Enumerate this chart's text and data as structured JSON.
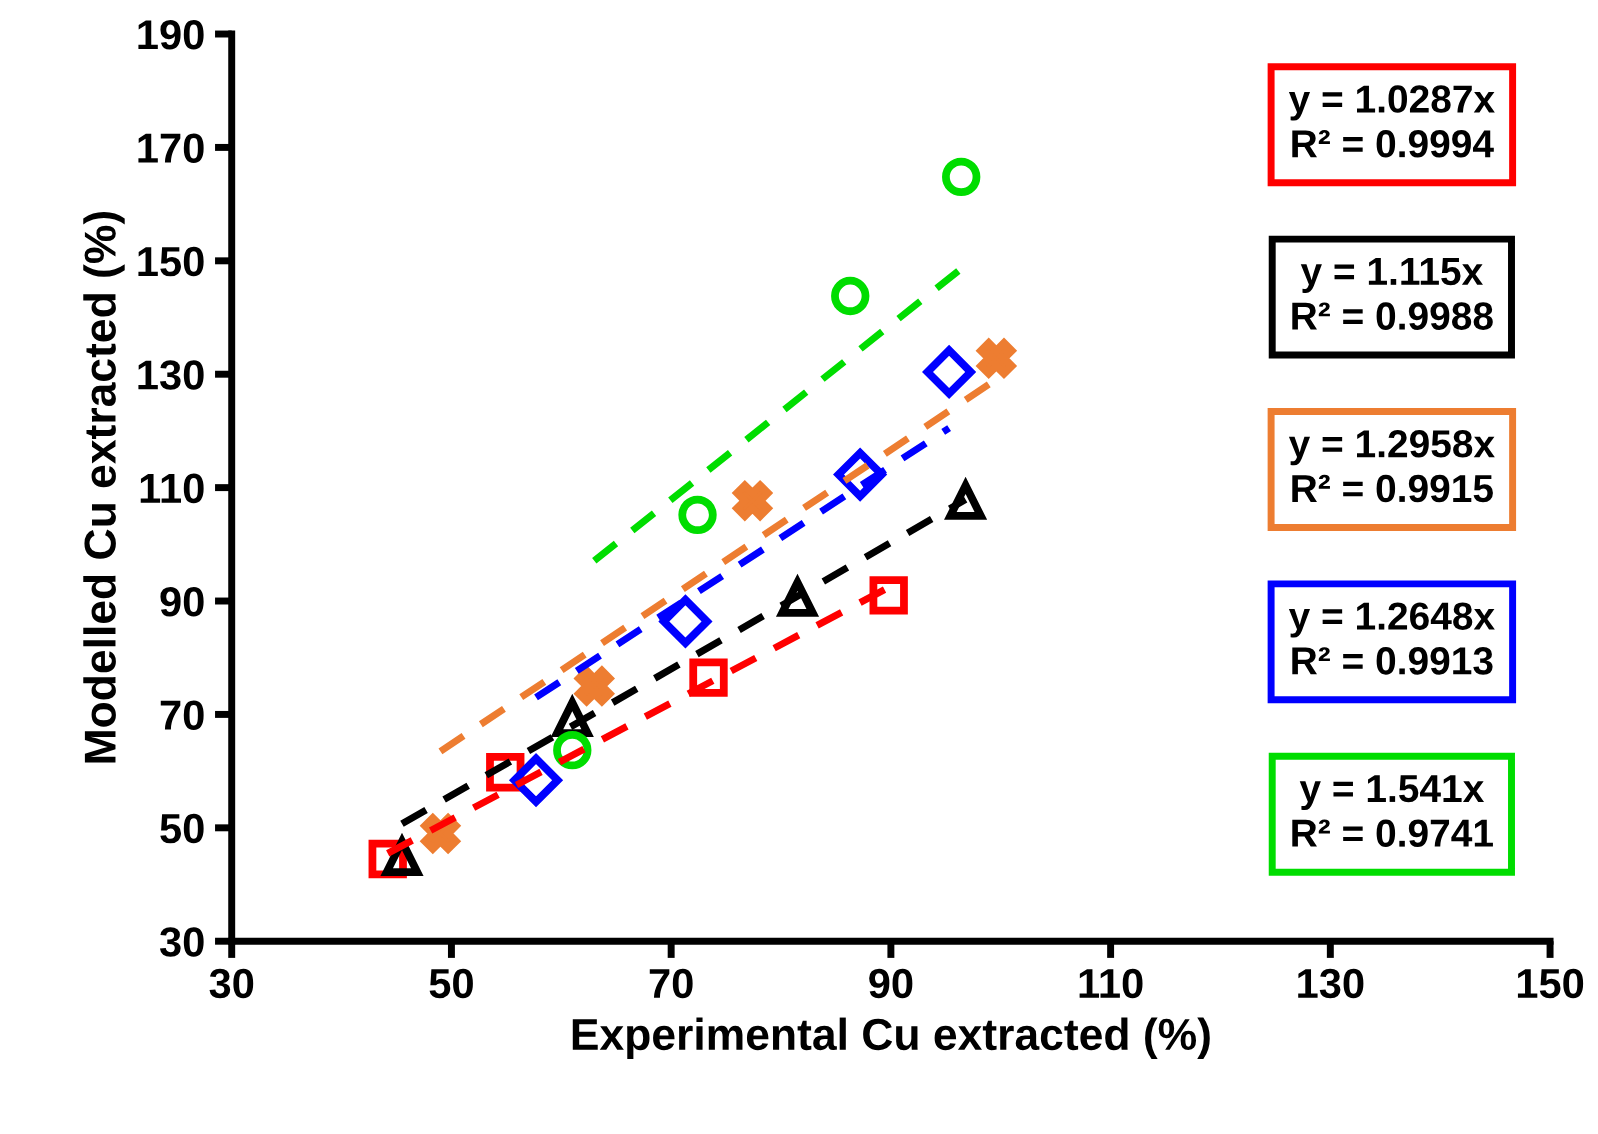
{
  "chart_data": {
    "type": "scatter",
    "xlabel": "Experimental Cu extracted (%)",
    "ylabel": "Modelled Cu extracted (%)",
    "xlim": [
      30,
      150
    ],
    "xticks": [
      30,
      50,
      70,
      90,
      110,
      130,
      150
    ],
    "ylim": [
      30,
      190
    ],
    "yticks": [
      30,
      50,
      70,
      90,
      110,
      130,
      150,
      170,
      190
    ],
    "grid": false,
    "series": [
      {
        "color": "#ff0000",
        "marker": "square",
        "x": [
          44.2,
          54.9,
          73.4,
          89.8
        ],
        "values": [
          44.5,
          59.8,
          76.5,
          91
        ]
      },
      {
        "color": "#000000",
        "marker": "triangle",
        "x": [
          45.5,
          61,
          81.5,
          96.8
        ],
        "values": [
          44.9,
          69.4,
          90.6,
          107.7
        ]
      },
      {
        "color": "#ed7d31",
        "marker": "cross",
        "x": [
          49,
          63,
          77.4,
          99.6
        ],
        "values": [
          49,
          75,
          107.7,
          132.8
        ]
      },
      {
        "color": "#0000ff",
        "marker": "diamond",
        "x": [
          57.7,
          71.3,
          87.2,
          95.3
        ],
        "values": [
          58.4,
          86.4,
          112.3,
          130.4
        ]
      },
      {
        "color": "#00dd00",
        "marker": "circle",
        "x": [
          61,
          72.4,
          86.3,
          96.4
        ],
        "values": [
          63.7,
          105.2,
          143.8,
          164.8
        ]
      },
      {
        "type": "line",
        "color": "#ff0000",
        "line_style": "dashed",
        "marker": "none",
        "x": [
          44.2,
          89.8
        ],
        "values": [
          45.5,
          92.4
        ]
      },
      {
        "type": "line",
        "color": "#000000",
        "line_style": "dashed",
        "marker": "none",
        "x": [
          45.5,
          96.8
        ],
        "values": [
          50.7,
          107.9
        ]
      },
      {
        "type": "line",
        "color": "#ed7d31",
        "line_style": "dashed",
        "marker": "none",
        "x": [
          49,
          99.6
        ],
        "values": [
          63.5,
          129.1
        ]
      },
      {
        "type": "line",
        "color": "#0000ff",
        "line_style": "dashed",
        "marker": "none",
        "x": [
          57.7,
          95.3
        ],
        "values": [
          73,
          120.5
        ]
      },
      {
        "type": "line",
        "color": "#00dd00",
        "line_style": "dashed",
        "marker": "none",
        "x": [
          63,
          96.4
        ],
        "values": [
          97.1,
          148.6
        ]
      }
    ],
    "annotations": [
      "y = 1.0287x\nR² = 0.9994",
      "y = 1.115x\nR² = 0.9988",
      "y = 1.2958x\nR² = 0.9915",
      "y = 1.2648x\nR² = 0.9913",
      "y = 1.541x\nR² = 0.9741"
    ]
  }
}
